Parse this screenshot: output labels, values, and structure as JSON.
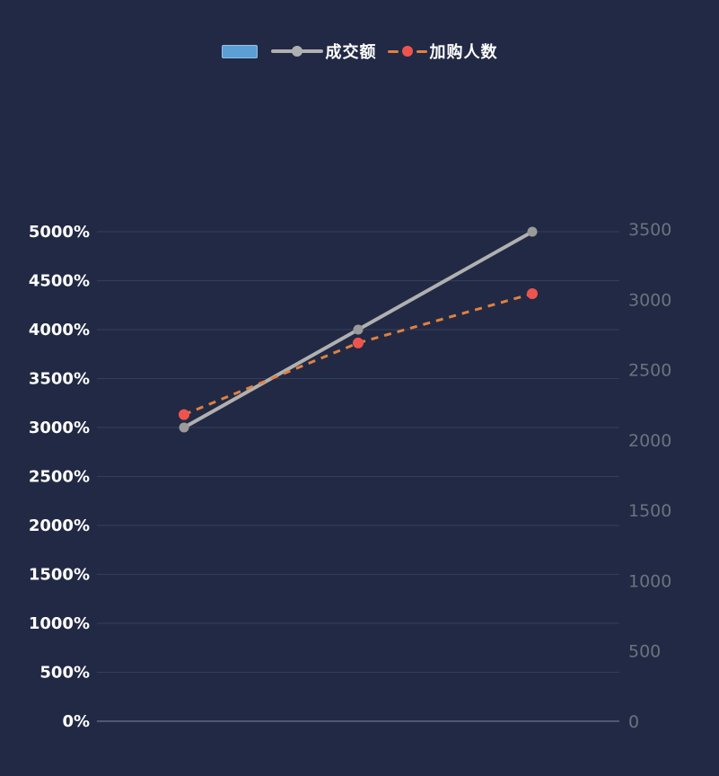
{
  "colors": {
    "background": "#222944",
    "grid_line": "#343e5c",
    "axis_line": "#4d5977",
    "left_axis_label": "#ffffff",
    "right_axis_label": "#6b7280",
    "legend_text": "#ffffff",
    "bar_swatch": "#5b9fd4",
    "sales_line": "#b0b0b0",
    "sales_point": "#9a9a9a",
    "cart_line": "#e08140",
    "cart_point": "#ee544e"
  },
  "legend": {
    "items": [
      {
        "label": "",
        "type": "bar"
      },
      {
        "label": "成交额",
        "type": "line"
      },
      {
        "label": "加购人数",
        "type": "dashed-line"
      }
    ]
  },
  "chart_data": {
    "type": "line",
    "categories": [
      "",
      "",
      ""
    ],
    "series": [
      {
        "name": "成交额",
        "type": "line",
        "line_style": "solid",
        "axis": "left",
        "values": [
          3000,
          4000,
          5000
        ],
        "unit": "%",
        "color": "#b0b0b0",
        "point_color": "#9a9a9a"
      },
      {
        "name": "加购人数",
        "type": "line",
        "line_style": "dashed",
        "axis": "right",
        "values": [
          2180,
          2690,
          3040
        ],
        "color": "#e08140",
        "point_color": "#ee544e"
      }
    ],
    "left_axis": {
      "min": 0,
      "max": 5000,
      "step": 500,
      "unit": "%",
      "labels": [
        "0%",
        "500%",
        "1000%",
        "1500%",
        "2000%",
        "2500%",
        "3000%",
        "3500%",
        "4000%",
        "4500%",
        "5000%"
      ]
    },
    "right_axis": {
      "min": 0,
      "max": 3500,
      "step": 500,
      "labels": [
        "0",
        "500",
        "1000",
        "1500",
        "2000",
        "2500",
        "3000",
        "3500"
      ]
    },
    "grid": true,
    "legend_position": "top-center",
    "x_axis_labels_visible": false
  }
}
